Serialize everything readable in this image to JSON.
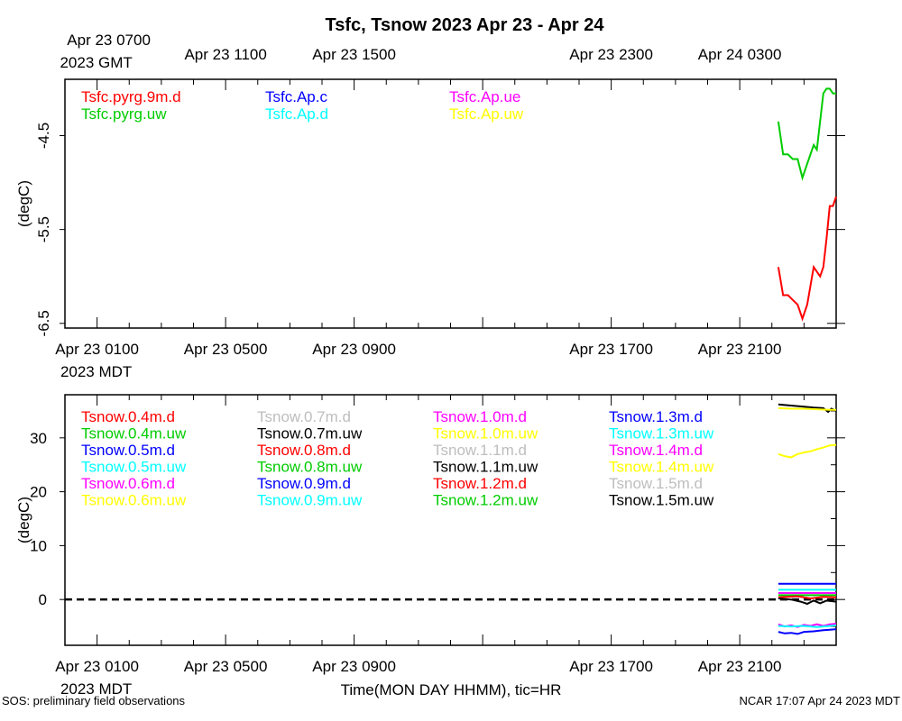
{
  "title": "Tsfc, Tsnow 2023 Apr 23 - Apr 24",
  "footer": {
    "left": "SOS: preliminary field observations",
    "center": "Time(MON DAY HHMM), tic=HR",
    "right": "NCAR 17:07 Apr 24 2023 MDT"
  },
  "chart_data": [
    {
      "type": "line",
      "panel": "top",
      "title": "Tsfc, Tsnow 2023 Apr 23 - Apr 24",
      "ylabel": "(degC)",
      "ylim": [
        -6.55,
        -3.9
      ],
      "yticks": [
        -4.5,
        -5.5,
        -6.5
      ],
      "xlim_hours": [
        0,
        24
      ],
      "xtick_labels_gmt": [
        {
          "hour": 1,
          "label": "Apr 23 0700",
          "sub": "2023 GMT"
        },
        {
          "hour": 5,
          "label": "Apr 23 1100"
        },
        {
          "hour": 9,
          "label": "Apr 23 1500"
        },
        {
          "hour": 17,
          "label": "Apr 23 2300"
        },
        {
          "hour": 21,
          "label": "Apr 24 0300"
        }
      ],
      "xtick_labels_mdt": [
        {
          "hour": 1,
          "label": "Apr 23 0100",
          "sub": "2023 MDT"
        },
        {
          "hour": 5,
          "label": "Apr 23 0500"
        },
        {
          "hour": 9,
          "label": "Apr 23 0900"
        },
        {
          "hour": 17,
          "label": "Apr 23 1700"
        },
        {
          "hour": 21,
          "label": "Apr 23 2100"
        }
      ],
      "legend": [
        {
          "name": "Tsfc.pyrg.9m.d",
          "color": "#ff0000"
        },
        {
          "name": "Tsfc.pyrg.uw",
          "color": "#00cc00"
        },
        {
          "name": "Tsfc.Ap.c",
          "color": "#0000ff"
        },
        {
          "name": "Tsfc.Ap.d",
          "color": "#00ffff"
        },
        {
          "name": "Tsfc.Ap.ue",
          "color": "#ff00ff"
        },
        {
          "name": "Tsfc.Ap.uw",
          "color": "#ffff00"
        }
      ],
      "series": [
        {
          "name": "Tsfc.pyrg.9m.d",
          "color": "#ff0000",
          "x": [
            22.2,
            22.35,
            22.5,
            22.65,
            22.8,
            22.95,
            23.1,
            23.3,
            23.5,
            23.6,
            23.7,
            23.8,
            23.9,
            24.0
          ],
          "y": [
            -5.9,
            -6.2,
            -6.2,
            -6.25,
            -6.3,
            -6.45,
            -6.3,
            -5.9,
            -6.0,
            -5.9,
            -5.6,
            -5.25,
            -5.25,
            -5.15
          ]
        },
        {
          "name": "Tsfc.pyrg.uw",
          "color": "#00cc00",
          "x": [
            22.2,
            22.35,
            22.5,
            22.65,
            22.8,
            22.95,
            23.1,
            23.3,
            23.4,
            23.6,
            23.7,
            23.8,
            23.9,
            24.0
          ],
          "y": [
            -4.35,
            -4.7,
            -4.7,
            -4.75,
            -4.75,
            -4.95,
            -4.8,
            -4.6,
            -4.65,
            -4.05,
            -4.0,
            -4.0,
            -4.05,
            -4.05
          ]
        }
      ]
    },
    {
      "type": "line",
      "panel": "bottom",
      "ylabel": "(degC)",
      "ylim": [
        -8.5,
        38
      ],
      "yticks": [
        0,
        10,
        20,
        30
      ],
      "xlim_hours": [
        0,
        24
      ],
      "xtick_labels_mdt": [
        {
          "hour": 1,
          "label": "Apr 23 0100",
          "sub": "2023 MDT"
        },
        {
          "hour": 5,
          "label": "Apr 23 0500"
        },
        {
          "hour": 9,
          "label": "Apr 23 0900"
        },
        {
          "hour": 17,
          "label": "Apr 23 1700"
        },
        {
          "hour": 21,
          "label": "Apr 23 2100"
        }
      ],
      "zero_line": true,
      "legend": [
        {
          "name": "Tsnow.0.4m.d",
          "color": "#ff0000"
        },
        {
          "name": "Tsnow.0.4m.uw",
          "color": "#00cc00"
        },
        {
          "name": "Tsnow.0.5m.d",
          "color": "#0000ff"
        },
        {
          "name": "Tsnow.0.5m.uw",
          "color": "#00ffff"
        },
        {
          "name": "Tsnow.0.6m.d",
          "color": "#ff00ff"
        },
        {
          "name": "Tsnow.0.6m.uw",
          "color": "#ffff00"
        },
        {
          "name": "Tsnow.0.7m.d",
          "color": "#bebebe"
        },
        {
          "name": "Tsnow.0.7m.uw",
          "color": "#000000"
        },
        {
          "name": "Tsnow.0.8m.d",
          "color": "#ff0000"
        },
        {
          "name": "Tsnow.0.8m.uw",
          "color": "#00cc00"
        },
        {
          "name": "Tsnow.0.9m.d",
          "color": "#0000ff"
        },
        {
          "name": "Tsnow.0.9m.uw",
          "color": "#00ffff"
        },
        {
          "name": "Tsnow.1.0m.d",
          "color": "#ff00ff"
        },
        {
          "name": "Tsnow.1.0m.uw",
          "color": "#ffff00"
        },
        {
          "name": "Tsnow.1.1m.d",
          "color": "#bebebe"
        },
        {
          "name": "Tsnow.1.1m.uw",
          "color": "#000000"
        },
        {
          "name": "Tsnow.1.2m.d",
          "color": "#ff0000"
        },
        {
          "name": "Tsnow.1.2m.uw",
          "color": "#00cc00"
        },
        {
          "name": "Tsnow.1.3m.d",
          "color": "#0000ff"
        },
        {
          "name": "Tsnow.1.3m.uw",
          "color": "#00ffff"
        },
        {
          "name": "Tsnow.1.4m.d",
          "color": "#ff00ff"
        },
        {
          "name": "Tsnow.1.4m.uw",
          "color": "#ffff00"
        },
        {
          "name": "Tsnow.1.5m.d",
          "color": "#bebebe"
        },
        {
          "name": "Tsnow.1.5m.uw",
          "color": "#000000"
        }
      ],
      "series": [
        {
          "name": "Tsnow.1.5m.uw",
          "color": "#000000",
          "x": [
            22.2,
            22.6,
            23.0,
            23.3,
            23.6,
            23.75,
            23.85,
            24.0
          ],
          "y": [
            36.2,
            36.0,
            35.8,
            35.6,
            35.5,
            34.8,
            35.4,
            35.0
          ]
        },
        {
          "name": "Tsnow.1.4m.uw",
          "color": "#ffff00",
          "x": [
            22.2,
            22.6,
            23.0,
            23.4,
            23.8,
            24.0
          ],
          "y": [
            35.5,
            35.4,
            35.4,
            35.3,
            35.2,
            35.2
          ]
        },
        {
          "name": "Tsnow.0.6m.uw",
          "color": "#ffff00",
          "x": [
            22.2,
            22.4,
            22.6,
            22.8,
            23.0,
            23.2,
            23.4,
            23.6,
            23.8,
            24.0
          ],
          "y": [
            27.0,
            26.6,
            26.4,
            27.0,
            27.3,
            27.5,
            27.9,
            28.2,
            28.6,
            28.7
          ]
        },
        {
          "name": "Tsnow.0.5m.d",
          "color": "#0000ff",
          "x": [
            22.2,
            24.0
          ],
          "y": [
            2.9,
            2.9
          ]
        },
        {
          "name": "Tsnow.0.9m.uw",
          "color": "#00ffff",
          "x": [
            22.2,
            24.0
          ],
          "y": [
            1.8,
            1.8
          ]
        },
        {
          "name": "Tsnow.1.0m.d",
          "color": "#ff00ff",
          "x": [
            22.2,
            24.0
          ],
          "y": [
            1.2,
            1.2
          ]
        },
        {
          "name": "Tsnow.0.8m.uw",
          "color": "#00cc00",
          "x": [
            22.2,
            24.0
          ],
          "y": [
            0.8,
            0.8
          ]
        },
        {
          "name": "Tsnow.0.4m.d",
          "color": "#ff0000",
          "x": [
            22.2,
            22.8,
            23.2,
            23.6,
            24.0
          ],
          "y": [
            0.4,
            0.6,
            0.2,
            0.5,
            0.4
          ]
        },
        {
          "name": "Tsnow.0.7m.uw",
          "color": "#000000",
          "x": [
            22.2,
            22.6,
            22.9,
            23.1,
            23.3,
            23.5,
            23.7,
            24.0
          ],
          "y": [
            0.2,
            0.0,
            -0.4,
            -0.8,
            -0.2,
            -0.7,
            -0.2,
            -0.4
          ]
        },
        {
          "name": "Tsnow.0.6m.d",
          "color": "#ff00ff",
          "x": [
            22.2,
            22.4,
            22.6,
            22.8,
            23.0,
            23.2,
            23.4,
            23.6,
            23.8,
            24.0
          ],
          "y": [
            -4.6,
            -5.0,
            -4.8,
            -5.1,
            -4.7,
            -4.9,
            -4.6,
            -4.9,
            -4.6,
            -4.5
          ]
        },
        {
          "name": "Tsnow.0.5m.uw",
          "color": "#00ffff",
          "x": [
            22.2,
            22.6,
            23.0,
            23.4,
            23.8,
            24.0
          ],
          "y": [
            -4.9,
            -5.0,
            -4.9,
            -5.1,
            -4.9,
            -4.8
          ]
        },
        {
          "name": "Tsnow.0.9m.d",
          "color": "#0000ff",
          "x": [
            22.2,
            22.4,
            22.6,
            22.8,
            23.0,
            23.3,
            23.6,
            23.8,
            24.0
          ],
          "y": [
            -6.0,
            -6.3,
            -6.2,
            -6.4,
            -6.0,
            -5.9,
            -5.7,
            -5.6,
            -5.5
          ]
        }
      ]
    }
  ]
}
